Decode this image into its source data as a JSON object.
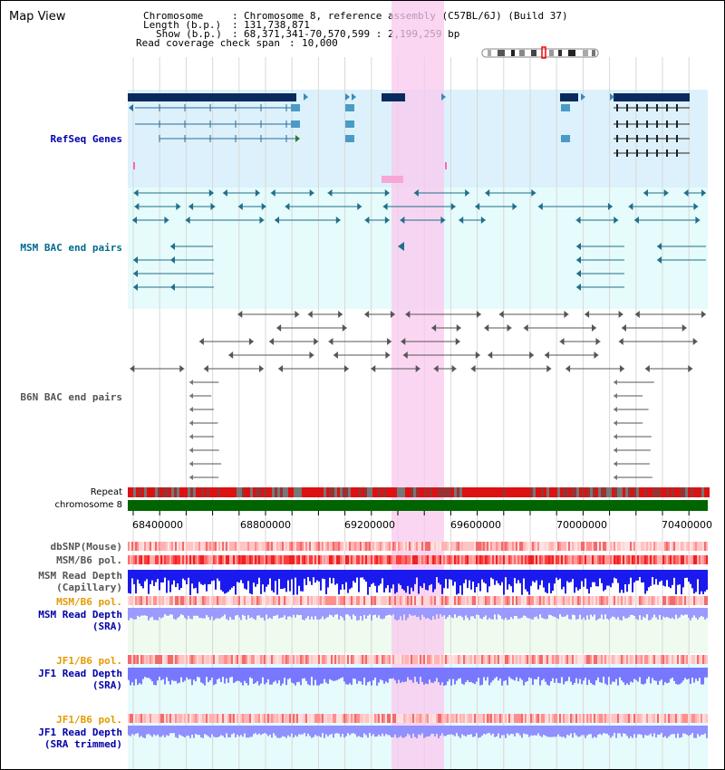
{
  "title": "Map View",
  "info": {
    "chromosome_key": "Chromosome",
    "chromosome_val": "Chromosome 8, reference assembly (C57BL/6J) (Build 37)",
    "length_key": "Length (b.p.)",
    "length_val": "131,738,871",
    "show_key": "Show (b.p.)",
    "show_val": "68,371,341-70,570,599 : 2,199,259 bp",
    "coverage_key": "Read coverage check span",
    "coverage_val": "10,000"
  },
  "tracks": {
    "refseq": "RefSeq Genes",
    "msm_bac": "MSM BAC end pairs",
    "b6n_bac": "B6N BAC end pairs",
    "repeat": "Repeat",
    "chromosome": "chromosome 8",
    "dbsnp": "dbSNP(Mouse)",
    "msm_b6_pol": "MSM/B6 pol.",
    "msm_read_depth_cap": "MSM Read Depth\n(Capillary)",
    "msm_b6_pol2": "MSM/B6 pol.",
    "msm_read_depth_sra": "MSM Read Depth\n(SRA)",
    "jf1_b6_pol": "JF1/B6 pol.",
    "jf1_read_depth_sra": "JF1 Read Depth\n(SRA)",
    "jf1_b6_pol2": "JF1/B6 pol.",
    "jf1_read_depth_trim": "JF1 Read Depth\n(SRA trimmed)"
  },
  "axis": {
    "ticks": [
      "68400000",
      "68800000",
      "69200000",
      "69600000",
      "70000000",
      "70400000"
    ]
  },
  "colors": {
    "refseq_label": "#0000aa",
    "msm_label": "#006b8f",
    "b6n_label": "#555555",
    "orange_label": "#e69a00",
    "blue_label": "#0000aa",
    "highlight": "#f9c8ee",
    "refseq_bg": "#dcf1fb",
    "msm_bg": "#e6fbfb",
    "chromosome_bar": "#006400"
  }
}
